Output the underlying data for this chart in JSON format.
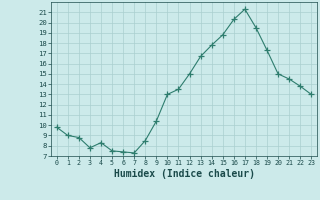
{
  "x": [
    0,
    1,
    2,
    3,
    4,
    5,
    6,
    7,
    8,
    9,
    10,
    11,
    12,
    13,
    14,
    15,
    16,
    17,
    18,
    19,
    20,
    21,
    22,
    23
  ],
  "y": [
    9.8,
    9.0,
    8.8,
    7.8,
    8.3,
    7.5,
    7.4,
    7.3,
    8.5,
    10.4,
    13.0,
    13.5,
    15.0,
    16.7,
    17.8,
    18.8,
    20.3,
    21.3,
    19.5,
    17.3,
    15.0,
    14.5,
    13.8,
    13.0
  ],
  "line_color": "#2e7d6e",
  "marker": "+",
  "marker_size": 4,
  "xlabel": "Humidex (Indice chaleur)",
  "bg_color": "#cceaea",
  "grid_color": "#aacfcf",
  "ylim": [
    7,
    22
  ],
  "xlim": [
    -0.5,
    23.5
  ],
  "yticks": [
    7,
    8,
    9,
    10,
    11,
    12,
    13,
    14,
    15,
    16,
    17,
    18,
    19,
    20,
    21
  ],
  "xticks": [
    0,
    1,
    2,
    3,
    4,
    5,
    6,
    7,
    8,
    9,
    10,
    11,
    12,
    13,
    14,
    15,
    16,
    17,
    18,
    19,
    20,
    21,
    22,
    23
  ],
  "tick_fontsize": 5.5,
  "xlabel_fontsize": 7.0,
  "label_color": "#1a4a4a"
}
